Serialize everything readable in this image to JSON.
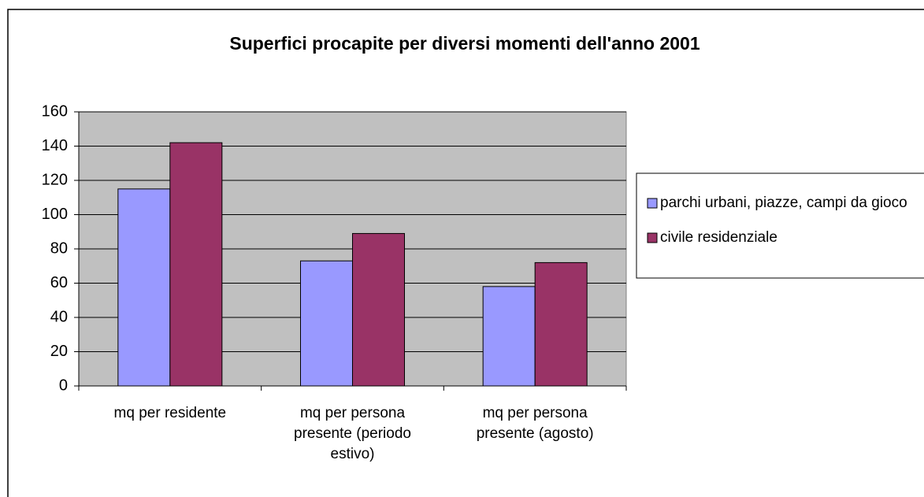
{
  "chart_data": {
    "type": "bar",
    "title": "Superfici procapite per diversi momenti dell'anno 2001",
    "categories": [
      "mq per residente",
      "mq per persona presente (periodo estivo)",
      "mq per persona presente (agosto)"
    ],
    "series": [
      {
        "name": "parchi urbani, piazze, campi da gioco",
        "color": "#9999ff",
        "values": [
          115,
          73,
          58
        ]
      },
      {
        "name": "civile residenziale",
        "color": "#993366",
        "values": [
          142,
          89,
          72
        ]
      }
    ],
    "ylim": [
      0,
      160
    ],
    "yticks": [
      0,
      20,
      40,
      60,
      80,
      100,
      120,
      140,
      160
    ],
    "grid": true,
    "legend": "right"
  }
}
